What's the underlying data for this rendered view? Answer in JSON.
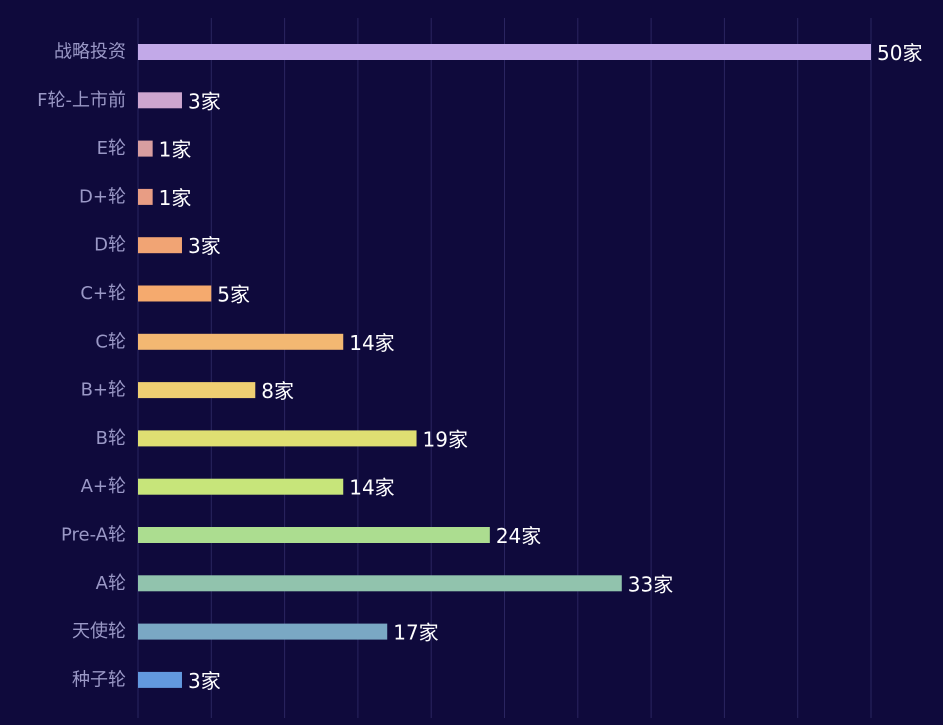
{
  "chart_data": {
    "type": "bar",
    "orientation": "horizontal",
    "categories": [
      "战略投资",
      "F轮-上市前",
      "E轮",
      "D+轮",
      "D轮",
      "C+轮",
      "C轮",
      "B+轮",
      "B轮",
      "A+轮",
      "Pre-A轮",
      "A轮",
      "天使轮",
      "种子轮"
    ],
    "values": [
      50,
      3,
      1,
      1,
      3,
      5,
      14,
      8,
      19,
      14,
      24,
      33,
      17,
      3
    ],
    "value_labels": [
      "50家",
      "3家",
      "1家",
      "1家",
      "3家",
      "5家",
      "14家",
      "8家",
      "19家",
      "14家",
      "24家",
      "33家",
      "17家",
      "3家"
    ],
    "bar_colors": [
      "#c2a9e8",
      "#cda6cf",
      "#d89ea0",
      "#e89d84",
      "#f1a474",
      "#f5aa6e",
      "#f3b872",
      "#efcf72",
      "#dfdf72",
      "#c7e57a",
      "#acdd90",
      "#91c3ad",
      "#7aa8c4",
      "#6299df"
    ],
    "xlim": [
      0,
      50
    ],
    "grid": true,
    "legend": "none"
  },
  "colors": {
    "background": "#0f0a3c",
    "grid": "#2a2560",
    "category_text": "#9a98c6",
    "value_text": "#ffffff"
  }
}
